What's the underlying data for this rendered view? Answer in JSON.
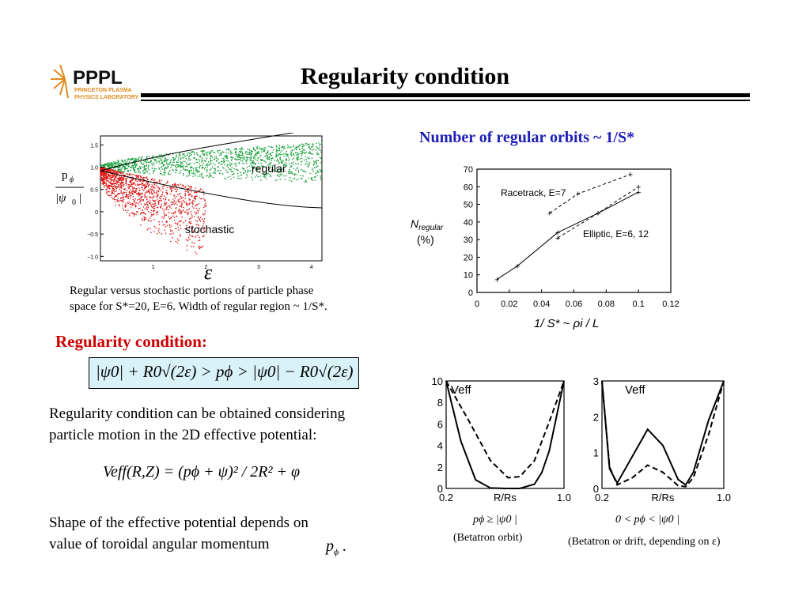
{
  "slide": {
    "title": "Regularity condition",
    "logo": {
      "main": "PPPL",
      "line1": "PRINCETON PLASMA",
      "line2": "PHYSICS LABORATORY"
    }
  },
  "scatter_plot": {
    "labels": {
      "regular": "regular",
      "stochastic": "stochastic"
    },
    "x_ticks": [
      "1",
      "2",
      "3",
      "4"
    ],
    "y_ticks": [
      "1.5",
      "1.0",
      "0.5",
      "0",
      "−0.5",
      "−1.0"
    ],
    "ylabel_num": "p",
    "ylabel_den": "|ψ",
    "xlabel": "ε",
    "colors": {
      "regular": "#17a03a",
      "stochastic": "#dd1a1a"
    }
  },
  "scatter_caption": {
    "line1": "Regular versus stochastic portions of  particle phase",
    "line2": "space for S*=20, E=6. Width of regular region ~ 1/S*."
  },
  "regular_orbits_heading": "Number of regular orbits ~ 1/S*",
  "regularity_heading": "Regularity condition:",
  "regularity_formula": "|ψ0| + R0√(2ε) > pϕ > |ψ0| − R0√(2ε)",
  "text_block_1": {
    "line1": "Regularity condition can be obtained considering",
    "line2": "particle motion in the 2D effective potential:"
  },
  "veff_formula": "Veff(R,Z) = (pϕ + ψ)² / 2R² + φ",
  "text_block_2": {
    "line1": "Shape of the effective potential depends on",
    "line2": " value of toroidal angular momentum"
  },
  "chart_data": [
    {
      "type": "line",
      "ylabel": "N_regular (%)",
      "xlabel": "1/ S* ~ ρi / L",
      "xlim": [
        0,
        0.12
      ],
      "ylim": [
        0,
        70
      ],
      "x_ticks": [
        "0",
        "0.02",
        "0.04",
        "0.06",
        "0.08",
        "0.1",
        "0.12"
      ],
      "y_ticks": [
        "0",
        "10",
        "20",
        "30",
        "40",
        "50",
        "60",
        "70"
      ],
      "annotations": [
        "Racetrack, E=7",
        "Elliptic, E=6, 12"
      ],
      "series": [
        {
          "style": "solid",
          "x": [
            0.0125,
            0.025,
            0.05,
            0.075,
            0.1
          ],
          "y": [
            7.5,
            15,
            34,
            45,
            57
          ]
        },
        {
          "style": "dashed",
          "x": [
            0.05,
            0.075,
            0.1
          ],
          "y": [
            31,
            45,
            60
          ]
        },
        {
          "style": "dashed",
          "x": [
            0.045,
            0.0625,
            0.095
          ],
          "y": [
            45,
            56,
            67
          ]
        }
      ]
    },
    {
      "type": "line",
      "title": "Veff",
      "xlabel": "R/Rs",
      "xlim": [
        0.2,
        1.0
      ],
      "ylim": [
        0,
        10
      ],
      "x_ticks": [
        "0.2",
        "R/Rs",
        "1.0"
      ],
      "y_ticks": [
        "10",
        "8",
        "6",
        "4",
        "2",
        "0"
      ],
      "caption_1": "pϕ ≥ |ψ0 |",
      "caption_2": "(Betatron orbit)",
      "series": [
        {
          "style": "solid",
          "x": [
            0.2,
            0.3,
            0.4,
            0.5,
            0.6,
            0.7,
            0.8,
            0.85,
            0.9,
            1.0
          ],
          "y": [
            10,
            4.4,
            0.8,
            0.05,
            0.0,
            0.0,
            0.4,
            1.5,
            3.5,
            10
          ]
        },
        {
          "style": "dashed",
          "x": [
            0.2,
            0.35,
            0.5,
            0.62,
            0.7,
            0.8,
            0.9,
            1.0
          ],
          "y": [
            10,
            6.4,
            2.6,
            1.0,
            1.1,
            2.6,
            6.2,
            10
          ]
        }
      ]
    },
    {
      "type": "line",
      "title": "Veff",
      "xlabel": "R/Rs",
      "xlim": [
        0.2,
        1.0
      ],
      "ylim": [
        0,
        3
      ],
      "x_ticks": [
        "0.2",
        "R/Rs",
        "1.0"
      ],
      "y_ticks": [
        "3",
        "2",
        "1",
        "0"
      ],
      "caption_1": "0 < pϕ < |ψ0 |",
      "caption_2": "(Betatron or drift, depending on ε)",
      "series": [
        {
          "style": "solid",
          "x": [
            0.2,
            0.25,
            0.3,
            0.4,
            0.5,
            0.6,
            0.7,
            0.75,
            0.8,
            0.9,
            1.0
          ],
          "y": [
            3.0,
            0.55,
            0.15,
            0.9,
            1.65,
            1.2,
            0.25,
            0.1,
            0.45,
            1.9,
            3.0
          ]
        },
        {
          "style": "dashed",
          "x": [
            0.2,
            0.25,
            0.3,
            0.4,
            0.5,
            0.6,
            0.7,
            0.75,
            0.8,
            0.9,
            1.0
          ],
          "y": [
            3.0,
            0.6,
            0.1,
            0.3,
            0.65,
            0.45,
            0.08,
            0.05,
            0.3,
            1.5,
            3.0
          ]
        }
      ]
    }
  ]
}
